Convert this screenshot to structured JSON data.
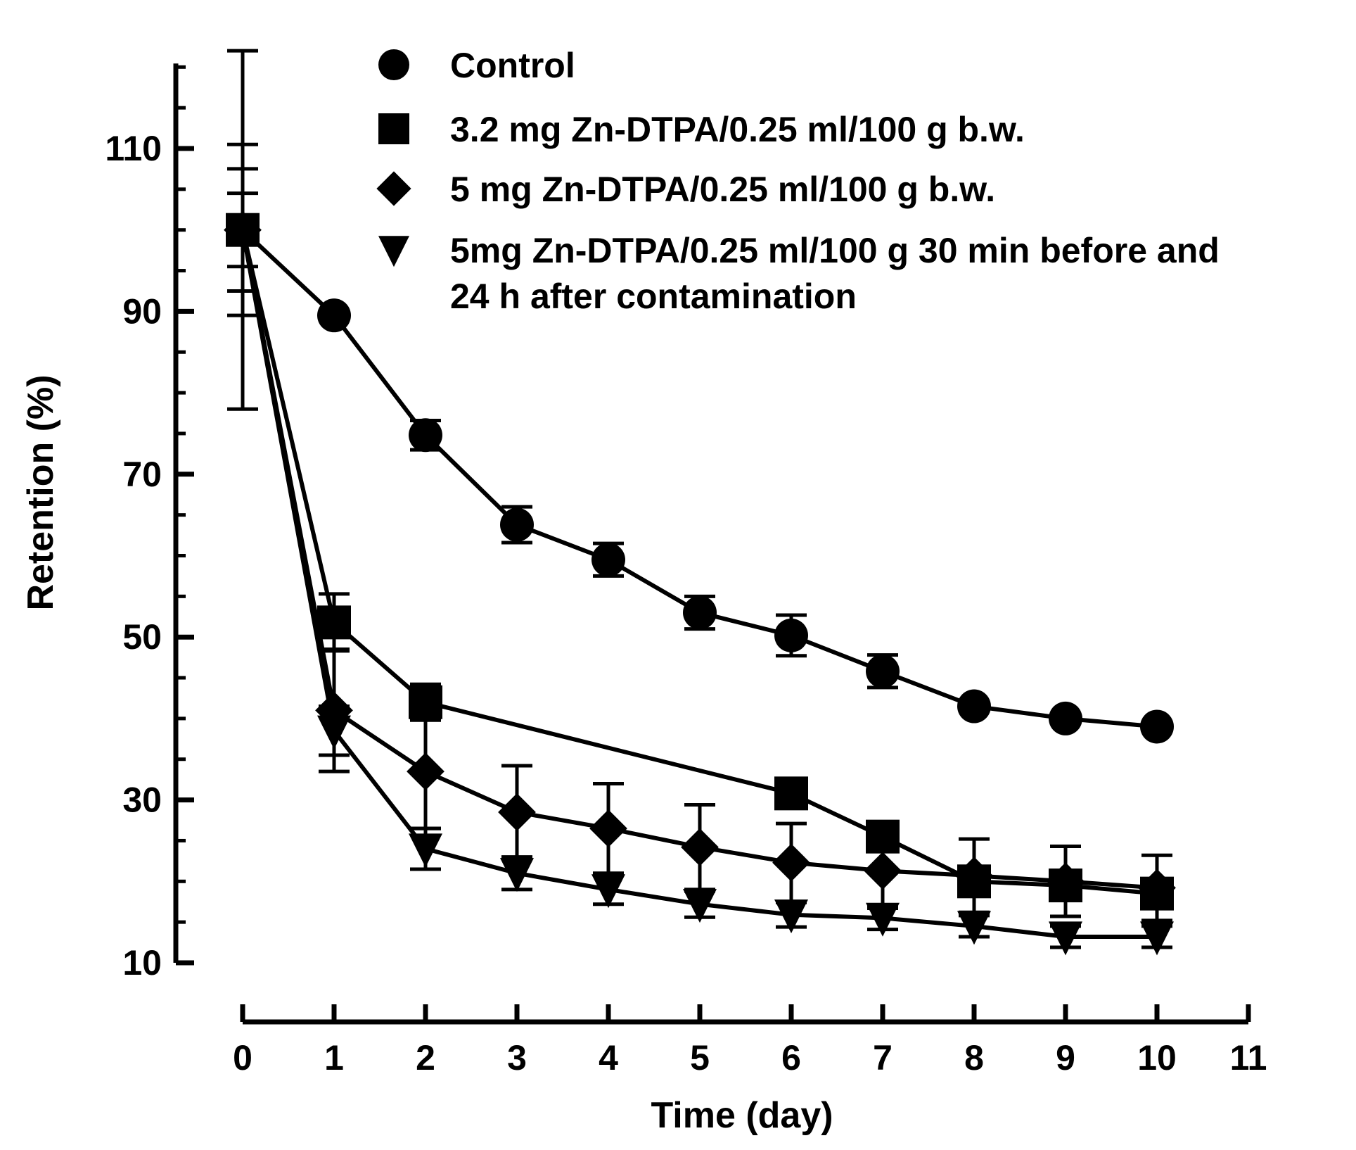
{
  "chart_data": {
    "type": "line",
    "title": "",
    "xlabel": "Time (day)",
    "ylabel": "Retention (%)",
    "xlim": [
      0,
      11
    ],
    "ylim": [
      10,
      120
    ],
    "xticks": [
      "0",
      "1",
      "2",
      "3",
      "4",
      "5",
      "6",
      "7",
      "8",
      "9",
      "10",
      "11"
    ],
    "yticks": [
      "10",
      "30",
      "50",
      "70",
      "90",
      "110"
    ],
    "grid": false,
    "legend_position": "top-right",
    "series": [
      {
        "name": "Control",
        "marker": "circle",
        "legend_lines": [
          "Control"
        ],
        "x": [
          0,
          1,
          2,
          3,
          4,
          5,
          6,
          7,
          8,
          9,
          10
        ],
        "y": [
          100,
          89.5,
          74.8,
          63.8,
          59.5,
          53,
          50.2,
          45.8,
          41.5,
          40,
          39
        ],
        "err": [
          22,
          0,
          1.8,
          2.2,
          2,
          2,
          2.5,
          2,
          0,
          0,
          0
        ]
      },
      {
        "name": "3.2 mg Zn-DTPA/0.25 ml/100 g b.w.",
        "marker": "square",
        "legend_lines": [
          "3.2 mg Zn-DTPA/0.25 ml/100 g b.w."
        ],
        "x": [
          0,
          1,
          2,
          6,
          7,
          8,
          9,
          10
        ],
        "y": [
          100,
          51.8,
          42,
          30.8,
          25.5,
          20,
          19.5,
          18.5
        ],
        "err": [
          7.5,
          3.5,
          2.2,
          0,
          0,
          0,
          0,
          0
        ]
      },
      {
        "name": "5 mg Zn-DTPA/0.25 ml/100 g b.w.",
        "marker": "diamond",
        "legend_lines": [
          "5 mg Zn-DTPA/0.25 ml/100 g b.w."
        ],
        "x": [
          0,
          1,
          2,
          3,
          4,
          5,
          6,
          7,
          8,
          9,
          10
        ],
        "y": [
          100,
          41,
          33.5,
          28.5,
          26.5,
          24.2,
          22.3,
          21.3,
          20.7,
          20,
          19.2
        ],
        "err": [
          10.5,
          7.5,
          7,
          5.7,
          5.5,
          5.2,
          4.8,
          4.6,
          4.5,
          4.3,
          4
        ]
      },
      {
        "name": "5mg Zn-DTPA/0.25 ml/100 g 30 min before and 24 h after contamination",
        "marker": "triangle-down",
        "legend_lines": [
          "5mg Zn-DTPA/0.25 ml/100 g 30 min before and",
          "24 h after contamination"
        ],
        "x": [
          0,
          1,
          2,
          3,
          4,
          5,
          6,
          7,
          8,
          9,
          10
        ],
        "y": [
          100,
          38.5,
          24,
          21,
          19,
          17.2,
          15.9,
          15.5,
          14.5,
          13.2,
          13.2
        ],
        "err": [
          4.5,
          3,
          2.5,
          2,
          1.8,
          1.6,
          1.5,
          1.4,
          1.3,
          1.3,
          1.3
        ]
      }
    ]
  }
}
